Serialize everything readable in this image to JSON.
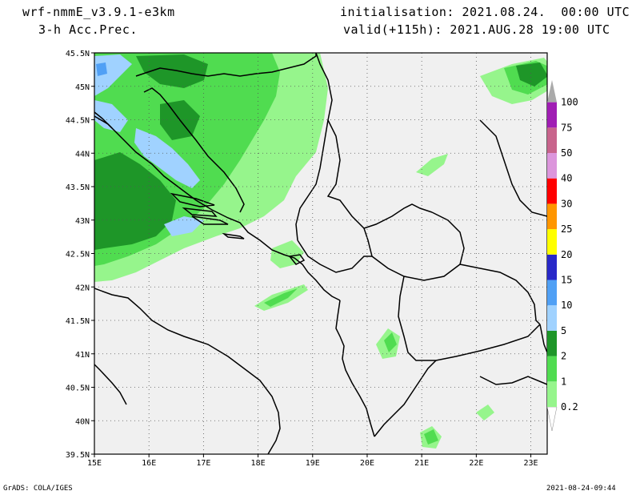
{
  "header": {
    "model": "wrf-nmmE_v3.9.1-e3km",
    "field": "3-h Acc.Prec.",
    "initialisation": "initialisation: 2021.08.24.  00:00 UTC",
    "valid": "valid(+115h): 2021.AUG.28 19:00 UTC"
  },
  "footer": {
    "credit": "GrADS: COLA/IGES",
    "timestamp": "2021-08-24-09:44"
  },
  "map": {
    "lat_labels": [
      "45.5N",
      "45N",
      "44.5N",
      "44N",
      "43.5N",
      "43N",
      "42.5N",
      "42N",
      "41.5N",
      "41N",
      "40.5N",
      "40N",
      "39.5N"
    ],
    "lon_labels": [
      "15E",
      "16E",
      "17E",
      "18E",
      "19E",
      "20E",
      "21E",
      "22E",
      "23E"
    ],
    "lat_range": [
      39.5,
      45.5
    ],
    "lon_range": [
      15,
      23.3
    ],
    "land_color": "#f0f0f0",
    "grid": "dotted"
  },
  "colorbar": {
    "levels": [
      "0.2",
      "1",
      "2",
      "5",
      "10",
      "15",
      "20",
      "25",
      "30",
      "40",
      "50",
      "75",
      "100"
    ],
    "colors": [
      "#96f58c",
      "#50dc50",
      "#1e9628",
      "#a0d2ff",
      "#50a0f5",
      "#2828c8",
      "#ffff00",
      "#ff9600",
      "#ff0000",
      "#dc96dc",
      "#c8648c",
      "#a01eb4",
      "#aaaaaa"
    ]
  }
}
